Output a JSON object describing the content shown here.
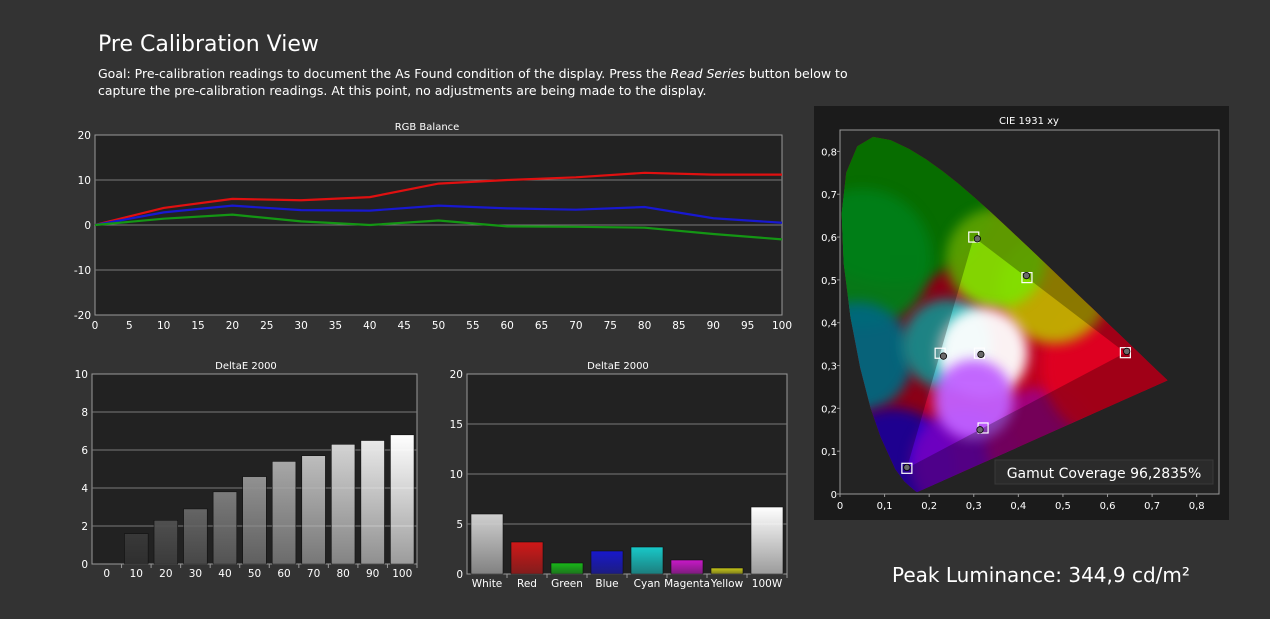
{
  "page": {
    "title": "Pre Calibration View",
    "goal_prefix": "Goal: Pre-calibration readings to document the As Found condition of the display. Press the ",
    "goal_emphasis": "Read Series",
    "goal_suffix": " button below to capture the pre-calibration readings. At this point, no adjustments are being made to the display.",
    "peak_luminance": "Peak Luminance: 344,9 cd/m²"
  },
  "colors": {
    "background": "#333333",
    "plot_bg": "#222222",
    "red": "#e01010",
    "green": "#149614",
    "blue": "#1818d0"
  },
  "chart_data": [
    {
      "type": "line",
      "title": "RGB Balance",
      "x": [
        0,
        10,
        20,
        30,
        40,
        50,
        60,
        70,
        80,
        90,
        100
      ],
      "xticks": [
        0,
        5,
        10,
        15,
        20,
        25,
        30,
        35,
        40,
        45,
        50,
        55,
        60,
        65,
        70,
        75,
        80,
        85,
        90,
        95,
        100
      ],
      "ylim": [
        -20,
        20
      ],
      "yticks": [
        -20,
        -10,
        0,
        10,
        20
      ],
      "grid": true,
      "series": [
        {
          "color": "#e01010",
          "values": [
            0,
            3.8,
            5.8,
            5.5,
            6.2,
            9.2,
            10.0,
            10.6,
            11.6,
            11.2,
            11.2
          ]
        },
        {
          "color": "#1818d0",
          "values": [
            0,
            2.8,
            4.3,
            3.3,
            3.2,
            4.3,
            3.7,
            3.4,
            4.0,
            1.5,
            0.5
          ]
        },
        {
          "color": "#149614",
          "values": [
            0,
            1.4,
            2.3,
            0.8,
            0.0,
            1.0,
            -0.3,
            -0.4,
            -0.6,
            -2.0,
            -3.2
          ]
        }
      ]
    },
    {
      "type": "bar",
      "title": "DeltaE 2000",
      "categories": [
        "0",
        "10",
        "20",
        "30",
        "40",
        "50",
        "60",
        "70",
        "80",
        "90",
        "100"
      ],
      "values": [
        0,
        1.6,
        2.3,
        2.9,
        3.8,
        4.6,
        5.4,
        5.7,
        6.3,
        6.5,
        6.8
      ],
      "ylim": [
        0,
        10
      ],
      "yticks": [
        0,
        2,
        4,
        6,
        8,
        10
      ],
      "grid": true
    },
    {
      "type": "bar",
      "title": "DeltaE 2000",
      "categories": [
        "White",
        "Red",
        "Green",
        "Blue",
        "Cyan",
        "Magenta",
        "Yellow",
        "100W"
      ],
      "values": [
        6.0,
        3.2,
        1.1,
        2.3,
        2.7,
        1.4,
        0.6,
        6.7
      ],
      "bar_colors": [
        "#cfcfcf",
        "#d01818",
        "#18b818",
        "#1818cc",
        "#18c8c8",
        "#c818c8",
        "#c8c818",
        "#ffffff"
      ],
      "ylim": [
        0,
        20
      ],
      "yticks": [
        0,
        5,
        10,
        15,
        20
      ],
      "grid": true
    },
    {
      "type": "scatter",
      "title": "CIE 1931 xy",
      "xlim": [
        0,
        0.85
      ],
      "ylim": [
        0,
        0.85
      ],
      "xticks": [
        "0",
        "0,1",
        "0,2",
        "0,3",
        "0,4",
        "0,5",
        "0,6",
        "0,7",
        "0,8"
      ],
      "yticks": [
        "0",
        "0,1",
        "0,2",
        "0,3",
        "0,4",
        "0,5",
        "0,6",
        "0,7",
        "0,8"
      ],
      "targets": [
        [
          0.64,
          0.33
        ],
        [
          0.3,
          0.6
        ],
        [
          0.15,
          0.06
        ],
        [
          0.3127,
          0.329
        ],
        [
          0.2246,
          0.3287
        ],
        [
          0.3209,
          0.1542
        ],
        [
          0.4193,
          0.5053
        ]
      ],
      "measured": [
        [
          0.643,
          0.333
        ],
        [
          0.308,
          0.596
        ],
        [
          0.15,
          0.062
        ],
        [
          0.316,
          0.326
        ],
        [
          0.232,
          0.322
        ],
        [
          0.314,
          0.15
        ],
        [
          0.418,
          0.51
        ]
      ],
      "annotation": "Gamut Coverage 96,2835%"
    }
  ]
}
